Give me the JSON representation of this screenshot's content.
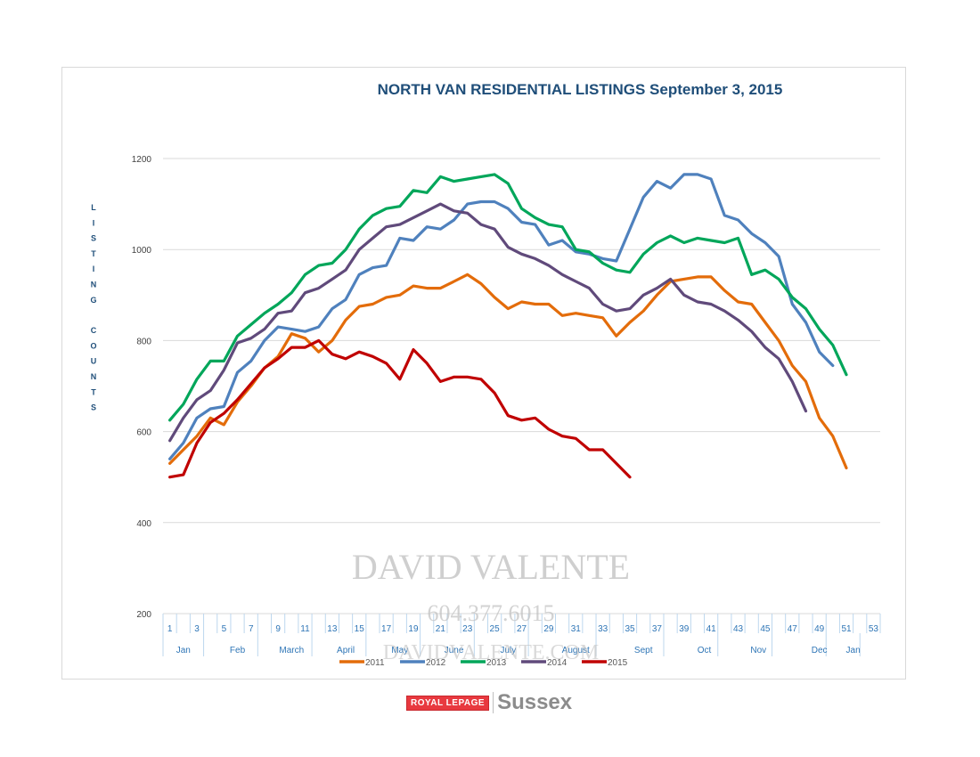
{
  "chart_data": {
    "type": "line",
    "title": "NORTH VAN RESIDENTIAL LISTINGS September 3, 2015",
    "ylabel": "LISTING COUNTS",
    "xlabel": "",
    "ylim": [
      200,
      1200
    ],
    "yticks": [
      200,
      400,
      600,
      800,
      1000,
      1200
    ],
    "xlim": [
      1,
      53
    ],
    "xticks": [
      1,
      3,
      5,
      7,
      9,
      11,
      13,
      15,
      17,
      19,
      21,
      23,
      25,
      27,
      29,
      31,
      33,
      35,
      37,
      39,
      41,
      43,
      45,
      47,
      49,
      51,
      53
    ],
    "months": [
      {
        "label": "Jan",
        "at": 2
      },
      {
        "label": "Feb",
        "at": 6
      },
      {
        "label": "March",
        "at": 10
      },
      {
        "label": "April",
        "at": 14
      },
      {
        "label": "May",
        "at": 18
      },
      {
        "label": "June",
        "at": 22
      },
      {
        "label": "July",
        "at": 26
      },
      {
        "label": "August",
        "at": 31
      },
      {
        "label": "Sept",
        "at": 36
      },
      {
        "label": "Oct",
        "at": 40.5
      },
      {
        "label": "Nov",
        "at": 44.5
      },
      {
        "label": "Dec",
        "at": 49
      },
      {
        "label": "Jan",
        "at": 51.5
      }
    ],
    "month_dividers": [
      1,
      4,
      8,
      12,
      16,
      20,
      24,
      28,
      33,
      38,
      42,
      46,
      50,
      52.5
    ],
    "grid": true,
    "legend": "bottom",
    "series": [
      {
        "name": "2011",
        "color": "#e36c0a",
        "x": [
          1,
          2,
          3,
          4,
          5,
          6,
          7,
          8,
          9,
          10,
          11,
          12,
          13,
          14,
          15,
          16,
          17,
          18,
          19,
          20,
          21,
          22,
          23,
          24,
          25,
          26,
          27,
          28,
          29,
          30,
          31,
          32,
          33,
          34,
          35,
          36,
          37,
          38,
          39,
          40,
          41,
          42,
          43,
          44,
          45,
          46,
          47,
          48,
          49,
          50,
          51
        ],
        "values": [
          530,
          560,
          590,
          630,
          615,
          665,
          700,
          740,
          765,
          815,
          805,
          775,
          800,
          845,
          875,
          880,
          895,
          900,
          920,
          915,
          915,
          930,
          945,
          925,
          895,
          870,
          885,
          880,
          880,
          855,
          860,
          855,
          850,
          810,
          840,
          865,
          900,
          930,
          935,
          940,
          940,
          910,
          885,
          880,
          840,
          800,
          745,
          710,
          630,
          590,
          520
        ]
      },
      {
        "name": "2012",
        "color": "#4f81bd",
        "x": [
          1,
          2,
          3,
          4,
          5,
          6,
          7,
          8,
          9,
          10,
          11,
          12,
          13,
          14,
          15,
          16,
          17,
          18,
          19,
          20,
          21,
          22,
          23,
          24,
          25,
          26,
          27,
          28,
          29,
          30,
          31,
          32,
          33,
          34,
          35,
          36,
          37,
          38,
          39,
          40,
          41,
          42,
          43,
          44,
          45,
          46,
          47,
          48,
          49,
          50
        ],
        "values": [
          540,
          575,
          630,
          650,
          655,
          730,
          755,
          800,
          830,
          825,
          820,
          830,
          870,
          890,
          945,
          960,
          965,
          1025,
          1020,
          1050,
          1045,
          1065,
          1100,
          1105,
          1105,
          1090,
          1060,
          1055,
          1010,
          1020,
          995,
          990,
          980,
          975,
          1045,
          1115,
          1150,
          1135,
          1165,
          1165,
          1155,
          1075,
          1065,
          1035,
          1015,
          985,
          880,
          840,
          775,
          745
        ]
      },
      {
        "name": "2013",
        "color": "#00a65a",
        "x": [
          1,
          2,
          3,
          4,
          5,
          6,
          7,
          8,
          9,
          10,
          11,
          12,
          13,
          14,
          15,
          16,
          17,
          18,
          19,
          20,
          21,
          22,
          23,
          24,
          25,
          26,
          27,
          28,
          29,
          30,
          31,
          32,
          33,
          34,
          35,
          36,
          37,
          38,
          39,
          40,
          41,
          42,
          43,
          44,
          45,
          46,
          47,
          48,
          49,
          50,
          51
        ],
        "values": [
          625,
          660,
          715,
          755,
          755,
          810,
          835,
          860,
          880,
          905,
          945,
          965,
          970,
          1000,
          1045,
          1075,
          1090,
          1095,
          1130,
          1125,
          1160,
          1150,
          1155,
          1160,
          1165,
          1145,
          1090,
          1070,
          1055,
          1050,
          1000,
          995,
          970,
          955,
          950,
          990,
          1015,
          1030,
          1015,
          1025,
          1020,
          1015,
          1025,
          945,
          955,
          935,
          895,
          870,
          825,
          790,
          725
        ]
      },
      {
        "name": "2014",
        "color": "#604a7b",
        "x": [
          1,
          2,
          3,
          4,
          5,
          6,
          7,
          8,
          9,
          10,
          11,
          12,
          13,
          14,
          15,
          16,
          17,
          18,
          19,
          20,
          21,
          22,
          23,
          24,
          25,
          26,
          27,
          28,
          29,
          30,
          31,
          32,
          33,
          34,
          35,
          36,
          37,
          38,
          39,
          40,
          41,
          42,
          43,
          44,
          45,
          46,
          47,
          48
        ],
        "values": [
          580,
          630,
          670,
          690,
          735,
          795,
          805,
          825,
          860,
          865,
          905,
          915,
          935,
          955,
          1000,
          1025,
          1050,
          1055,
          1070,
          1085,
          1100,
          1085,
          1080,
          1055,
          1045,
          1005,
          990,
          980,
          965,
          945,
          930,
          915,
          880,
          865,
          870,
          900,
          915,
          935,
          900,
          885,
          880,
          865,
          845,
          820,
          785,
          760,
          710,
          645
        ]
      },
      {
        "name": "2015",
        "color": "#c00000",
        "x": [
          1,
          2,
          3,
          4,
          5,
          6,
          7,
          8,
          9,
          10,
          11,
          12,
          13,
          14,
          15,
          16,
          17,
          18,
          19,
          20,
          21,
          22,
          23,
          24,
          25,
          26,
          27,
          28,
          29,
          30,
          31,
          32,
          33,
          34,
          35
        ],
        "values": [
          500,
          505,
          575,
          620,
          640,
          670,
          705,
          740,
          760,
          785,
          785,
          800,
          770,
          760,
          775,
          765,
          750,
          715,
          780,
          750,
          710,
          720,
          720,
          715,
          685,
          635,
          625,
          630,
          605,
          590,
          585,
          560,
          560,
          530,
          500
        ]
      }
    ]
  },
  "watermark": {
    "name": "DAVID VALENTE",
    "phone": "604.377.6015",
    "url": "DAVIDVALENTE.COM"
  },
  "logo": {
    "brand": "ROYAL LEPAGE",
    "office": "Sussex"
  }
}
